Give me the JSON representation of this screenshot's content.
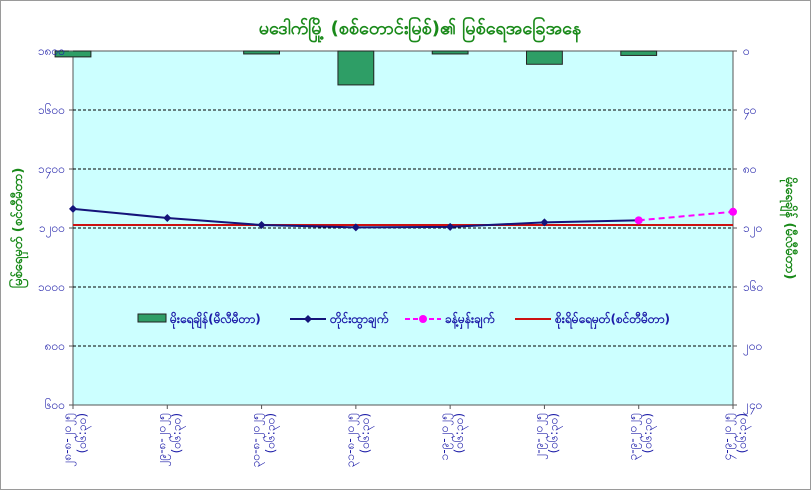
{
  "chart_data": {
    "type": "bar+line",
    "title": "မဒေါက်မြို့ (စစ်တောင်းမြစ်)၏ မြစ်ရေအခြေအနေ",
    "ylabel_left": "မြစ်ရေမှတ် (စင်တီမီတာ)",
    "ylabel_right": "မိုးရေချိန် (မီလီမီတာ)",
    "categories": [
      "၂၈-၈-၂၀၂၅\n(၀၆:၃၀)",
      "၂၉-၈-၂၀၂၅\n(၀၆:၃၀)",
      "၃၀-၈-၂၀၂၅\n(၀၆:၃၀)",
      "၃၁-၈-၂၀၂၅\n(၀၆:၃၀)",
      "၁-၉-၂၀၂၅\n(၀၆:၃၀)",
      "၂-၉-၂၀၂၅\n(၀၆:၃၀)",
      "၃-၉-၂၀၂၅\n(၀၆:၃၀)",
      "၄-၉-၂၀၂၅\n(၀၆:၃၀)"
    ],
    "left_axis": {
      "ylim": [
        600,
        1800
      ],
      "ticks": [
        600,
        800,
        1000,
        1200,
        1400,
        1600,
        1800
      ],
      "tick_labels": [
        "၆၀၀",
        "၈၀၀",
        "၁၀၀၀",
        "၁၂၀၀",
        "၁၄၀၀",
        "၁၆၀၀",
        "၁၈၀၀"
      ]
    },
    "right_axis": {
      "ylim": [
        0,
        240
      ],
      "inverted": true,
      "ticks": [
        0,
        40,
        80,
        120,
        160,
        200,
        240
      ],
      "tick_labels": [
        "၀",
        "၄၀",
        "၈၀",
        "၁၂၀",
        "၁၆၀",
        "၂၀၀",
        "၂၄၀"
      ]
    },
    "grid": true,
    "legend_position": "center",
    "series": [
      {
        "name": "မိုးရေချိန်(မီလီမီတာ)",
        "type": "bar",
        "axis": "right",
        "color": "#2e9e66",
        "values": [
          4,
          0,
          2,
          23,
          2,
          9,
          3,
          null
        ]
      },
      {
        "name": "တိုင်းထွာချက်",
        "type": "line",
        "axis": "left",
        "color": "#14147a",
        "values": [
          1265,
          1234,
          1210,
          1202,
          1204,
          1219,
          1226,
          null
        ]
      },
      {
        "name": "ခန့်မှန်းချက်",
        "type": "line-dashed",
        "axis": "left",
        "color": "#ff00ff",
        "values": [
          null,
          null,
          null,
          null,
          null,
          null,
          1226,
          1255
        ]
      },
      {
        "name": "စိုးရိမ်ရေမှတ်(စင်တီမီတာ)",
        "type": "hline",
        "axis": "left",
        "color": "#cc1111",
        "value": 1210
      }
    ]
  },
  "colors": {
    "plot_bg": "#ccffff",
    "title": "#1a8a1a",
    "tick": "#1c1ca8",
    "grid": "#000000"
  }
}
